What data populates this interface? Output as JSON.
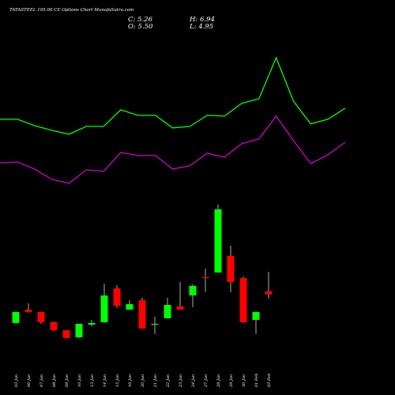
{
  "header": {
    "c": "C: 5.26",
    "o": "O: 5.50",
    "h": "H: 6.94",
    "l": "L: 4.95"
  },
  "chart_data": {
    "type": "candlestick",
    "title": "TATASTEEL 195.00 CE Options Chart MunafaSutra.com",
    "categories": [
      "03 Jan",
      "06 Jan",
      "07 Jan",
      "08 Jan",
      "09 Jan",
      "10 Jan",
      "13 Jan",
      "14 Jan",
      "15 Jan",
      "16 Jan",
      "20 Jan",
      "21 Jan",
      "22 Jan",
      "23 Jan",
      "24 Jan",
      "27 Jan",
      "28 Jan",
      "29 Jan",
      "30 Jan",
      "01 Feb",
      "03 Feb"
    ],
    "open": [
      3.14,
      4.13,
      3.96,
      3.2,
      2.61,
      2.08,
      3.02,
      3.2,
      5.71,
      4.13,
      4.83,
      3.02,
      3.49,
      4.37,
      5.18,
      6.53,
      6.88,
      8.11,
      6.47,
      3.37,
      5.5
    ],
    "high": [
      3.96,
      4.6,
      3.96,
      3.25,
      2.61,
      3.08,
      3.37,
      6.06,
      5.94,
      4.83,
      5.01,
      3.6,
      5.01,
      6.18,
      6.0,
      7.17,
      11.91,
      8.87,
      6.59,
      3.96,
      6.94
    ],
    "low": [
      3.14,
      3.9,
      3.08,
      2.55,
      2.03,
      2.03,
      2.9,
      3.14,
      4.25,
      4.13,
      2.73,
      2.32,
      3.49,
      4.31,
      4.31,
      5.42,
      6.88,
      5.42,
      3.14,
      2.32,
      4.95
    ],
    "close": [
      3.96,
      3.96,
      3.2,
      2.61,
      2.03,
      3.08,
      3.14,
      5.18,
      4.42,
      4.54,
      2.73,
      3.08,
      4.48,
      4.13,
      5.89,
      6.47,
      11.56,
      6.18,
      3.2,
      3.96,
      5.26
    ],
    "up_color": "#00ff00",
    "down_color": "#ff0000",
    "series": [
      {
        "name": "Upper band",
        "color": "#00ff00",
        "values": [
          18.23,
          18.23,
          17.76,
          17.41,
          17.12,
          17.7,
          17.7,
          18.93,
          18.52,
          18.52,
          17.59,
          17.7,
          18.52,
          18.46,
          19.4,
          19.75,
          22.79,
          19.58,
          17.88,
          18.23,
          19.05
        ]
      },
      {
        "name": "Lower band",
        "color": "#cc00cc",
        "values": [
          15.01,
          15.07,
          14.54,
          13.78,
          13.49,
          14.49,
          14.37,
          15.77,
          15.54,
          15.54,
          14.54,
          14.78,
          15.71,
          15.42,
          16.42,
          16.77,
          18.46,
          16.65,
          14.95,
          15.6,
          16.53
        ]
      }
    ],
    "ylim": [
      -2.19,
      27.06
    ]
  }
}
